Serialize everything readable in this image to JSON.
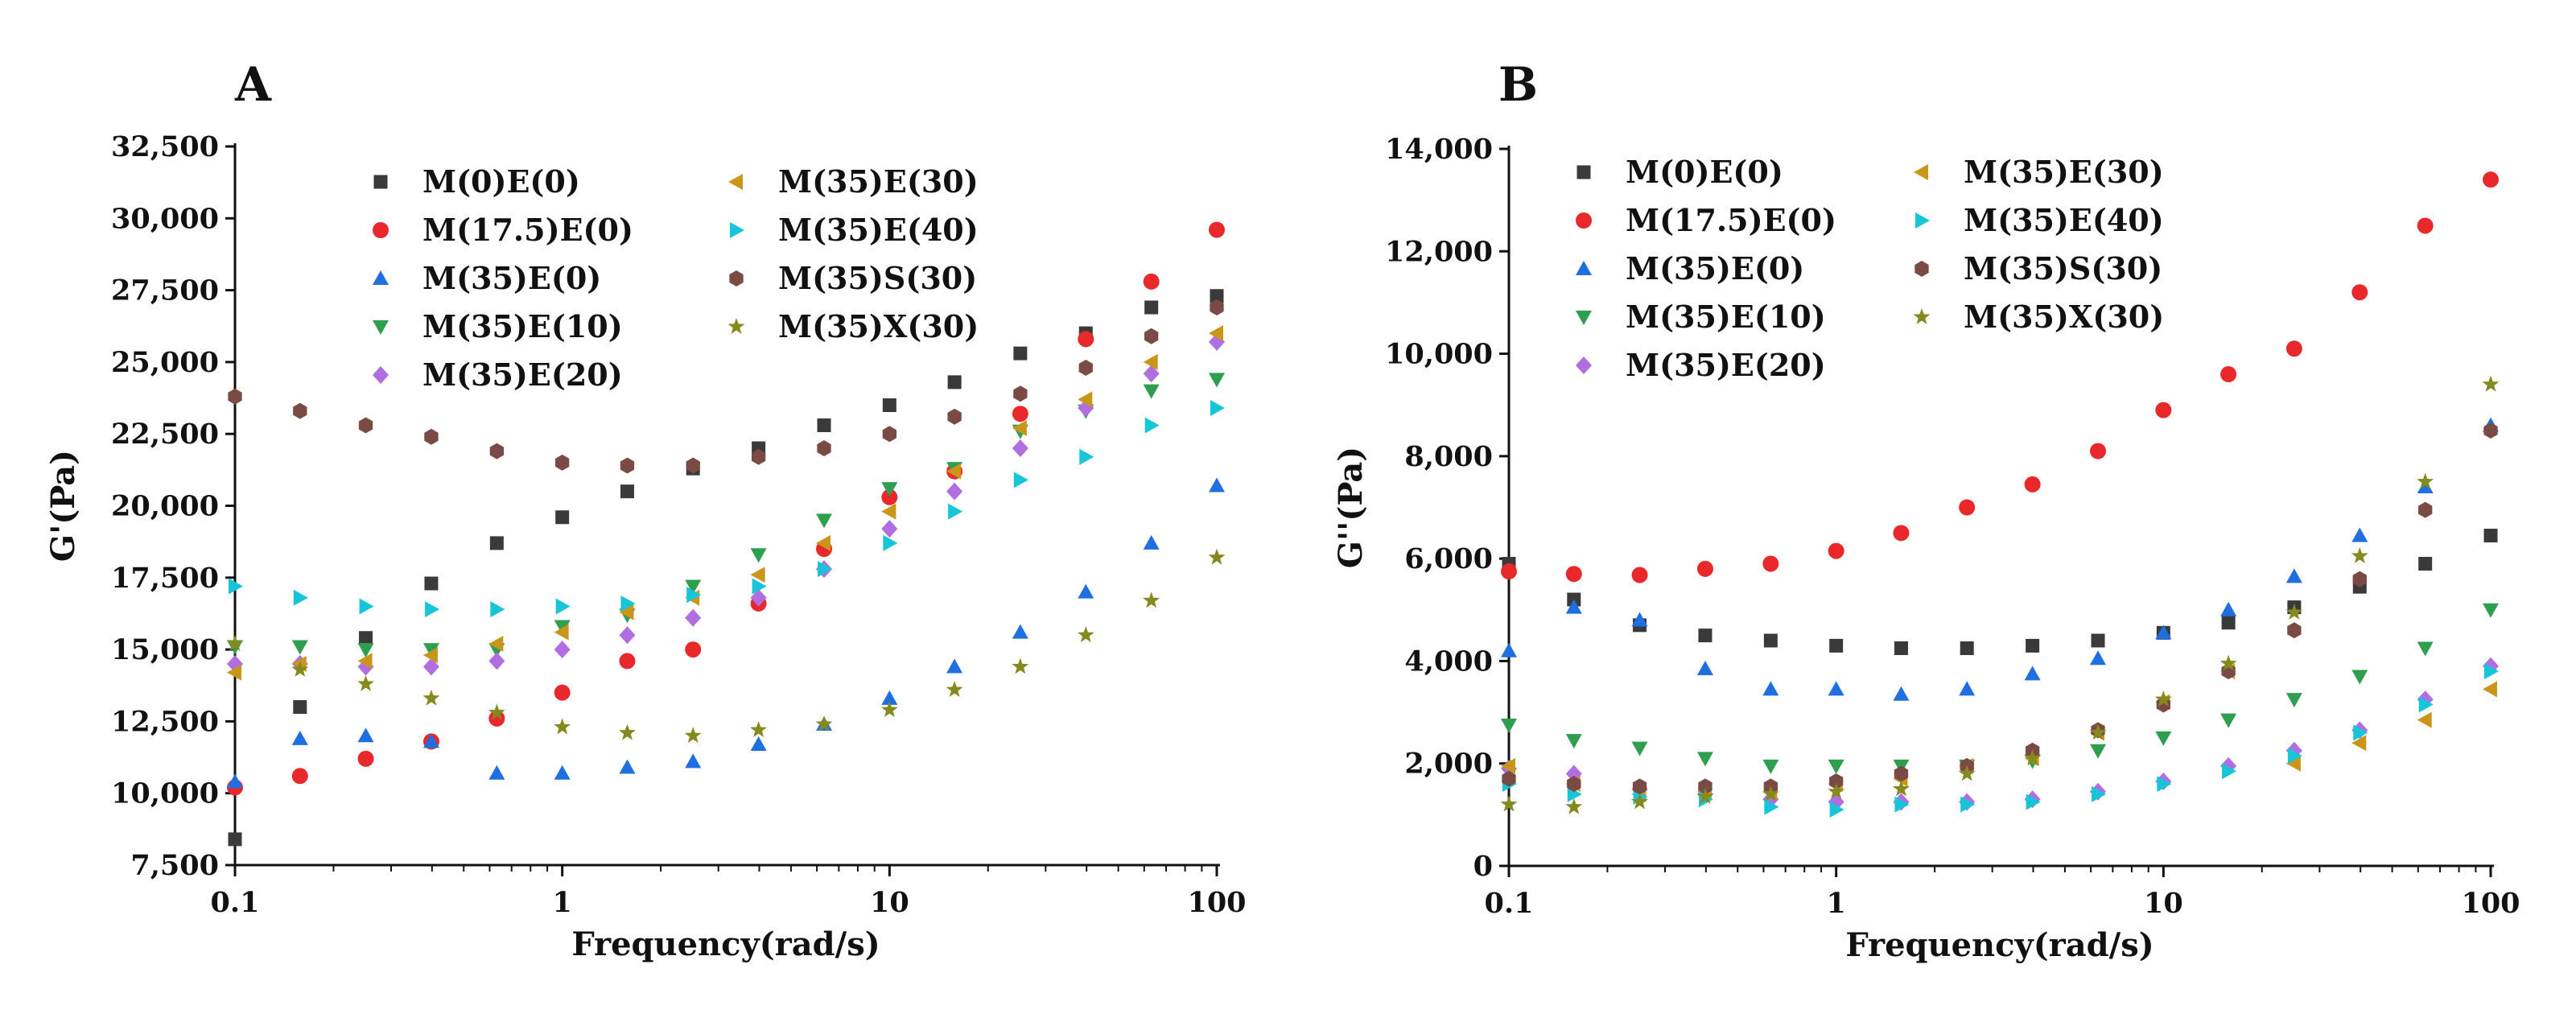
{
  "chart_data": [
    {
      "panel": "A",
      "type": "scatter",
      "xscale": "log",
      "xlabel": "Frequency(rad/s)",
      "ylabel": "G'(Pa)",
      "xlim": [
        0.1,
        100
      ],
      "ylim": [
        7500,
        32500
      ],
      "xticks": [
        0.1,
        1,
        10,
        100
      ],
      "xtick_labels": [
        "0.1",
        "1",
        "10",
        "100"
      ],
      "yticks": [
        7500,
        10000,
        12500,
        15000,
        17500,
        20000,
        22500,
        25000,
        27500,
        30000,
        32500
      ],
      "ytick_labels": [
        "7,500",
        "10,000",
        "12,500",
        "15,000",
        "17,500",
        "20,000",
        "22,500",
        "25,000",
        "27,500",
        "30,000",
        "32,500"
      ],
      "legend_location": "upper-left",
      "x": [
        0.1,
        0.158,
        0.251,
        0.398,
        0.631,
        1,
        1.58,
        2.51,
        3.98,
        6.31,
        10,
        15.8,
        25.1,
        39.8,
        63.1,
        100
      ],
      "series": [
        {
          "name": "M(0)E(0)",
          "marker": "square",
          "color": "#3a3a3a",
          "values": [
            8400,
            13000,
            15400,
            17300,
            18700,
            19600,
            20500,
            21300,
            22000,
            22800,
            23500,
            24300,
            25300,
            26000,
            26900,
            27300
          ]
        },
        {
          "name": "M(17.5)E(0)",
          "marker": "circle",
          "color": "#e8282b",
          "values": [
            10200,
            10600,
            11200,
            11800,
            12600,
            13500,
            14600,
            15000,
            16600,
            18500,
            20300,
            21200,
            23200,
            25800,
            27800,
            29600
          ]
        },
        {
          "name": "M(35)E(0)",
          "marker": "triangle-up",
          "color": "#1f6fe0",
          "values": [
            10400,
            11900,
            12000,
            11800,
            10700,
            10700,
            10900,
            11100,
            11700,
            12400,
            13300,
            14400,
            15600,
            17000,
            18700,
            20700
          ]
        },
        {
          "name": "M(35)E(10)",
          "marker": "triangle-down",
          "color": "#2e9e4f",
          "values": [
            15100,
            15100,
            15000,
            15000,
            15000,
            15800,
            16200,
            17200,
            18300,
            19500,
            20600,
            21300,
            22600,
            23300,
            24000,
            24400
          ]
        },
        {
          "name": "M(35)E(20)",
          "marker": "diamond",
          "color": "#b06ee0",
          "values": [
            14500,
            14500,
            14400,
            14400,
            14600,
            15000,
            15500,
            16100,
            16800,
            17800,
            19200,
            20500,
            22000,
            23400,
            24600,
            25700
          ]
        },
        {
          "name": "M(35)E(30)",
          "marker": "triangle-left",
          "color": "#c9961a",
          "values": [
            14200,
            14500,
            14600,
            14800,
            15200,
            15600,
            16300,
            16800,
            17600,
            18700,
            19800,
            21200,
            22700,
            23700,
            25000,
            26000
          ]
        },
        {
          "name": "M(35)E(40)",
          "marker": "triangle-right",
          "color": "#16c6d8",
          "values": [
            17200,
            16800,
            16500,
            16400,
            16400,
            16500,
            16600,
            16900,
            17200,
            17800,
            18700,
            19800,
            20900,
            21700,
            22800,
            23400
          ]
        },
        {
          "name": "M(35)S(30)",
          "marker": "hexagon",
          "color": "#7a4a44",
          "values": [
            23800,
            23300,
            22800,
            22400,
            21900,
            21500,
            21400,
            21400,
            21700,
            22000,
            22500,
            23100,
            23900,
            24800,
            25900,
            26900
          ]
        },
        {
          "name": "M(35)X(30)",
          "marker": "star",
          "color": "#858a1e",
          "values": [
            15200,
            14300,
            13800,
            13300,
            12800,
            12300,
            12100,
            12000,
            12200,
            12400,
            12900,
            13600,
            14400,
            15500,
            16700,
            18200
          ]
        }
      ]
    },
    {
      "panel": "B",
      "type": "scatter",
      "xscale": "log",
      "xlabel": "Frequency(rad/s)",
      "ylabel": "G''(Pa)",
      "xlim": [
        0.1,
        100
      ],
      "ylim": [
        0,
        14000
      ],
      "xticks": [
        0.1,
        1,
        10,
        100
      ],
      "xtick_labels": [
        "0.1",
        "1",
        "10",
        "100"
      ],
      "yticks": [
        0,
        2000,
        4000,
        6000,
        8000,
        10000,
        12000,
        14000
      ],
      "ytick_labels": [
        "0",
        "2,000",
        "4,000",
        "6,000",
        "8,000",
        "10,000",
        "12,000",
        "14,000"
      ],
      "legend_location": "upper-left",
      "x": [
        0.1,
        0.158,
        0.251,
        0.398,
        0.631,
        1,
        1.58,
        2.51,
        3.98,
        6.31,
        10,
        15.8,
        25.1,
        39.8,
        63.1,
        100
      ],
      "series": [
        {
          "name": "M(0)E(0)",
          "marker": "square",
          "color": "#3a3a3a",
          "values": [
            5900,
            5200,
            4700,
            4500,
            4400,
            4300,
            4250,
            4250,
            4300,
            4400,
            4550,
            4750,
            5050,
            5450,
            5900,
            6450
          ]
        },
        {
          "name": "M(17.5)E(0)",
          "marker": "circle",
          "color": "#e8282b",
          "values": [
            5750,
            5700,
            5680,
            5800,
            5900,
            6150,
            6500,
            7000,
            7450,
            8100,
            8900,
            9600,
            10100,
            11200,
            12500,
            13400
          ]
        },
        {
          "name": "M(35)E(0)",
          "marker": "triangle-up",
          "color": "#1f6fe0",
          "values": [
            4200,
            5050,
            4800,
            3850,
            3450,
            3450,
            3350,
            3450,
            3750,
            4050,
            4550,
            5000,
            5650,
            6450,
            7400,
            8600
          ]
        },
        {
          "name": "M(35)E(10)",
          "marker": "triangle-down",
          "color": "#2e9e4f",
          "values": [
            2750,
            2450,
            2300,
            2100,
            1950,
            1950,
            1950,
            1950,
            2050,
            2250,
            2500,
            2850,
            3250,
            3700,
            4250,
            5000
          ]
        },
        {
          "name": "M(35)E(20)",
          "marker": "diamond",
          "color": "#b06ee0",
          "values": [
            1900,
            1800,
            1500,
            1400,
            1300,
            1250,
            1250,
            1250,
            1300,
            1450,
            1650,
            1950,
            2250,
            2650,
            3250,
            3900
          ]
        },
        {
          "name": "M(35)E(30)",
          "marker": "triangle-left",
          "color": "#c9961a",
          "values": [
            1950,
            1600,
            1400,
            1450,
            1450,
            1600,
            1700,
            1950,
            2100,
            2600,
            3200,
            3800,
            2000,
            2400,
            2850,
            3450
          ]
        },
        {
          "name": "M(35)E(40)",
          "marker": "triangle-right",
          "color": "#16c6d8",
          "values": [
            1600,
            1400,
            1350,
            1300,
            1150,
            1100,
            1200,
            1200,
            1250,
            1400,
            1600,
            1850,
            2150,
            2600,
            3150,
            3800
          ]
        },
        {
          "name": "M(35)S(30)",
          "marker": "hexagon",
          "color": "#7a4a44",
          "values": [
            1700,
            1600,
            1550,
            1550,
            1550,
            1650,
            1800,
            1950,
            2250,
            2650,
            3150,
            3800,
            4600,
            5600,
            6950,
            8500
          ]
        },
        {
          "name": "M(35)X(30)",
          "marker": "star",
          "color": "#858a1e",
          "values": [
            1200,
            1150,
            1250,
            1350,
            1400,
            1450,
            1500,
            1800,
            2100,
            2600,
            3250,
            3950,
            4950,
            6050,
            7500,
            9400
          ]
        }
      ]
    }
  ]
}
